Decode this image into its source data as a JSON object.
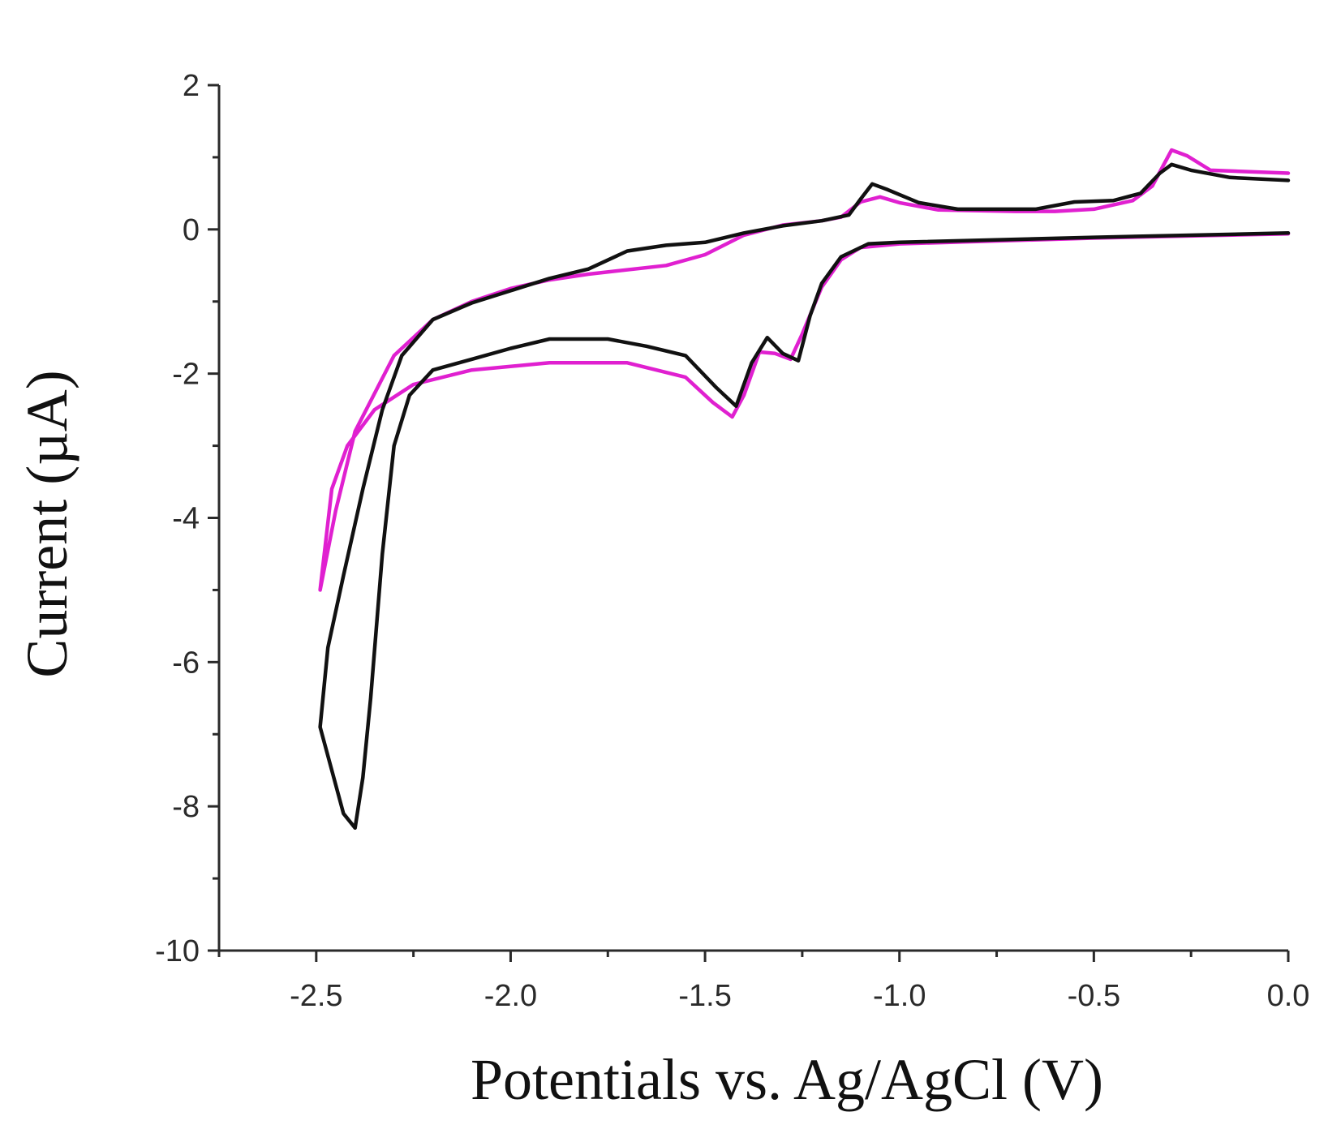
{
  "chart_data": {
    "type": "line",
    "title": "",
    "xlabel": "Potentials vs. Ag/AgCl (V)",
    "ylabel": "Current (µA)",
    "xlim": [
      -2.75,
      0.0
    ],
    "ylim": [
      -10,
      2
    ],
    "x_ticks": [
      -2.5,
      -2.0,
      -1.5,
      -1.0,
      -0.5,
      0.0
    ],
    "x_tick_labels": [
      "-2.5",
      "-2.0",
      "-1.5",
      "-1.0",
      "-0.5",
      "0.0"
    ],
    "y_ticks": [
      2,
      0,
      -2,
      -4,
      -6,
      -8,
      -10
    ],
    "y_tick_labels": [
      "2",
      "0",
      "-2",
      "-4",
      "-6",
      "-8",
      "-10"
    ],
    "grid": false,
    "legend": false,
    "series": [
      {
        "color": "#e020d0",
        "points": [
          [
            0.0,
            -0.06
          ],
          [
            -0.5,
            -0.12
          ],
          [
            -1.0,
            -0.2
          ],
          [
            -1.1,
            -0.25
          ],
          [
            -1.15,
            -0.42
          ],
          [
            -1.2,
            -0.8
          ],
          [
            -1.25,
            -1.45
          ],
          [
            -1.28,
            -1.8
          ],
          [
            -1.32,
            -1.72
          ],
          [
            -1.36,
            -1.7
          ],
          [
            -1.4,
            -2.3
          ],
          [
            -1.43,
            -2.6
          ],
          [
            -1.48,
            -2.4
          ],
          [
            -1.55,
            -2.05
          ],
          [
            -1.7,
            -1.85
          ],
          [
            -1.9,
            -1.85
          ],
          [
            -2.1,
            -1.95
          ],
          [
            -2.25,
            -2.15
          ],
          [
            -2.35,
            -2.5
          ],
          [
            -2.42,
            -3.0
          ],
          [
            -2.46,
            -3.6
          ],
          [
            -2.49,
            -5.0
          ],
          [
            -2.45,
            -3.9
          ],
          [
            -2.4,
            -2.8
          ],
          [
            -2.3,
            -1.75
          ],
          [
            -2.2,
            -1.25
          ],
          [
            -2.1,
            -1.0
          ],
          [
            -2.0,
            -0.82
          ],
          [
            -1.9,
            -0.7
          ],
          [
            -1.8,
            -0.62
          ],
          [
            -1.6,
            -0.5
          ],
          [
            -1.5,
            -0.35
          ],
          [
            -1.4,
            -0.08
          ],
          [
            -1.3,
            0.06
          ],
          [
            -1.2,
            0.12
          ],
          [
            -1.15,
            0.17
          ],
          [
            -1.1,
            0.38
          ],
          [
            -1.05,
            0.45
          ],
          [
            -1.0,
            0.37
          ],
          [
            -0.9,
            0.27
          ],
          [
            -0.7,
            0.25
          ],
          [
            -0.6,
            0.25
          ],
          [
            -0.5,
            0.28
          ],
          [
            -0.4,
            0.4
          ],
          [
            -0.35,
            0.6
          ],
          [
            -0.3,
            1.1
          ],
          [
            -0.26,
            1.02
          ],
          [
            -0.2,
            0.82
          ],
          [
            0.0,
            0.78
          ]
        ]
      },
      {
        "color": "#111111",
        "points": [
          [
            0.0,
            -0.05
          ],
          [
            -0.5,
            -0.11
          ],
          [
            -1.0,
            -0.18
          ],
          [
            -1.08,
            -0.2
          ],
          [
            -1.15,
            -0.38
          ],
          [
            -1.2,
            -0.75
          ],
          [
            -1.23,
            -1.2
          ],
          [
            -1.26,
            -1.82
          ],
          [
            -1.3,
            -1.72
          ],
          [
            -1.34,
            -1.5
          ],
          [
            -1.38,
            -1.85
          ],
          [
            -1.42,
            -2.45
          ],
          [
            -1.47,
            -2.2
          ],
          [
            -1.55,
            -1.75
          ],
          [
            -1.65,
            -1.62
          ],
          [
            -1.75,
            -1.52
          ],
          [
            -1.9,
            -1.52
          ],
          [
            -2.0,
            -1.65
          ],
          [
            -2.1,
            -1.8
          ],
          [
            -2.2,
            -1.95
          ],
          [
            -2.26,
            -2.3
          ],
          [
            -2.3,
            -3.0
          ],
          [
            -2.33,
            -4.5
          ],
          [
            -2.36,
            -6.5
          ],
          [
            -2.38,
            -7.6
          ],
          [
            -2.4,
            -8.3
          ],
          [
            -2.43,
            -8.1
          ],
          [
            -2.46,
            -7.5
          ],
          [
            -2.49,
            -6.9
          ],
          [
            -2.47,
            -5.8
          ],
          [
            -2.43,
            -4.8
          ],
          [
            -2.38,
            -3.6
          ],
          [
            -2.33,
            -2.5
          ],
          [
            -2.28,
            -1.75
          ],
          [
            -2.2,
            -1.25
          ],
          [
            -2.1,
            -1.02
          ],
          [
            -2.0,
            -0.85
          ],
          [
            -1.9,
            -0.68
          ],
          [
            -1.8,
            -0.55
          ],
          [
            -1.7,
            -0.3
          ],
          [
            -1.6,
            -0.22
          ],
          [
            -1.5,
            -0.18
          ],
          [
            -1.4,
            -0.05
          ],
          [
            -1.3,
            0.05
          ],
          [
            -1.2,
            0.12
          ],
          [
            -1.13,
            0.2
          ],
          [
            -1.1,
            0.42
          ],
          [
            -1.07,
            0.63
          ],
          [
            -1.03,
            0.55
          ],
          [
            -0.95,
            0.37
          ],
          [
            -0.85,
            0.28
          ],
          [
            -0.65,
            0.28
          ],
          [
            -0.55,
            0.38
          ],
          [
            -0.45,
            0.4
          ],
          [
            -0.38,
            0.5
          ],
          [
            -0.33,
            0.78
          ],
          [
            -0.3,
            0.9
          ],
          [
            -0.25,
            0.82
          ],
          [
            -0.15,
            0.72
          ],
          [
            0.0,
            0.68
          ]
        ]
      }
    ]
  }
}
